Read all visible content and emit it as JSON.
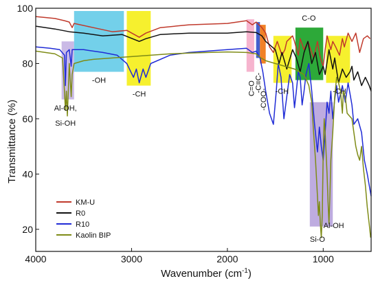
{
  "chart_data": {
    "type": "line",
    "title": "",
    "xlabel": "Wavenumber (cm",
    "xlabel_sup": "-1",
    "xlabel_end": ")",
    "ylabel": "Transmittance (%)",
    "xlim": [
      4000,
      500
    ],
    "x_reversed": true,
    "ylim": [
      12,
      100
    ],
    "grid": false,
    "legend_position": "bottom-left",
    "x_ticks": [
      {
        "value": 4000,
        "label": "4000"
      },
      {
        "value": 3000,
        "label": "3000"
      },
      {
        "value": 2000,
        "label": "2000"
      },
      {
        "value": 1000,
        "label": "1000"
      }
    ],
    "y_ticks": [
      {
        "value": 20,
        "label": "20"
      },
      {
        "value": 40,
        "label": "40"
      },
      {
        "value": 60,
        "label": "60"
      },
      {
        "value": 80,
        "label": "80"
      },
      {
        "value": 100,
        "label": "100"
      }
    ],
    "regions": [
      {
        "name": "region-al-oh",
        "x1": 3730,
        "x2": 3600,
        "y1": 67,
        "y2": 88,
        "color": "#b39ddb",
        "opacity": 0.7
      },
      {
        "name": "region-oh",
        "x1": 3600,
        "x2": 3080,
        "y1": 77,
        "y2": 99,
        "color": "#5bc8e6",
        "opacity": 0.85
      },
      {
        "name": "region-ch-1",
        "x1": 3050,
        "x2": 2800,
        "y1": 72,
        "y2": 99,
        "color": "#f5ee17",
        "opacity": 0.9
      },
      {
        "name": "region-c-o-double",
        "x1": 1800,
        "x2": 1720,
        "y1": 77,
        "y2": 96,
        "color": "#f4a7c6",
        "opacity": 0.85
      },
      {
        "name": "region-c-triple",
        "x1": 1700,
        "x2": 1660,
        "y1": 82,
        "y2": 95,
        "color": "#2f4fc8",
        "opacity": 0.9
      },
      {
        "name": "region-coo",
        "x1": 1660,
        "x2": 1600,
        "y1": 80,
        "y2": 94,
        "color": "#f07a1a",
        "opacity": 0.95
      },
      {
        "name": "region-ch-2",
        "x1": 1520,
        "x2": 1330,
        "y1": 73,
        "y2": 90,
        "color": "#f5ee17",
        "opacity": 0.9
      },
      {
        "name": "region-c-o",
        "x1": 1290,
        "x2": 1000,
        "y1": 74,
        "y2": 93,
        "color": "#22a42e",
        "opacity": 0.95
      },
      {
        "name": "region-ch-3",
        "x1": 970,
        "x2": 720,
        "y1": 73,
        "y2": 90,
        "color": "#f5ee17",
        "opacity": 0.9
      },
      {
        "name": "region-si-o",
        "x1": 1140,
        "x2": 900,
        "y1": 21,
        "y2": 66,
        "color": "#b39ddb",
        "opacity": 0.85
      }
    ],
    "annotations": [
      {
        "name": "label-al-oh-si-oh-1",
        "text": "Al-OH,",
        "x": 3690,
        "y": 63
      },
      {
        "name": "label-al-oh-si-oh-2",
        "text": "Si-OH",
        "x": 3690,
        "y": 57.5
      },
      {
        "name": "label-oh",
        "text": "-OH",
        "x": 3340,
        "y": 73
      },
      {
        "name": "label-ch-1",
        "text": "-CH",
        "x": 2920,
        "y": 68
      },
      {
        "name": "label-c-o-double",
        "text": "C=O",
        "x": 1750,
        "y": 71,
        "rotate": -90
      },
      {
        "name": "label-c-triple",
        "text": "-C≡C-",
        "x": 1680,
        "y": 73,
        "rotate": -90
      },
      {
        "name": "label-coo",
        "text": "-COO-",
        "x": 1625,
        "y": 67,
        "rotate": -90
      },
      {
        "name": "label-ch-2",
        "text": "-CH",
        "x": 1430,
        "y": 69
      },
      {
        "name": "label-c-o",
        "text": "C-O",
        "x": 1150,
        "y": 95.5
      },
      {
        "name": "label-ch-3",
        "text": "-CH",
        "x": 830,
        "y": 69
      },
      {
        "name": "label-si-o",
        "text": "Si-O",
        "x": 1060,
        "y": 15.5
      },
      {
        "name": "label-al-oh",
        "text": "Al-OH",
        "x": 890,
        "y": 20.5
      }
    ],
    "series": [
      {
        "name": "KM-U",
        "color": "#c0392b",
        "points": [
          [
            4000,
            97
          ],
          [
            3800,
            96.3
          ],
          [
            3700,
            95.5
          ],
          [
            3650,
            95
          ],
          [
            3620,
            93
          ],
          [
            3600,
            94.5
          ],
          [
            3400,
            93
          ],
          [
            3200,
            91.5
          ],
          [
            3050,
            92
          ],
          [
            2920,
            89.5
          ],
          [
            2850,
            91
          ],
          [
            2700,
            93
          ],
          [
            2400,
            94
          ],
          [
            2000,
            94.5
          ],
          [
            1800,
            95.5
          ],
          [
            1740,
            94
          ],
          [
            1700,
            95
          ],
          [
            1640,
            93
          ],
          [
            1600,
            91
          ],
          [
            1560,
            86
          ],
          [
            1520,
            84
          ],
          [
            1480,
            88
          ],
          [
            1430,
            83
          ],
          [
            1400,
            85
          ],
          [
            1380,
            88
          ],
          [
            1320,
            90
          ],
          [
            1300,
            88
          ],
          [
            1260,
            83
          ],
          [
            1240,
            89
          ],
          [
            1200,
            85
          ],
          [
            1160,
            88
          ],
          [
            1100,
            82
          ],
          [
            1060,
            88
          ],
          [
            1030,
            82
          ],
          [
            1000,
            79
          ],
          [
            980,
            85
          ],
          [
            960,
            90
          ],
          [
            920,
            85
          ],
          [
            900,
            88
          ],
          [
            870,
            86
          ],
          [
            830,
            83
          ],
          [
            800,
            89
          ],
          [
            780,
            86
          ],
          [
            740,
            91
          ],
          [
            700,
            88
          ],
          [
            660,
            91
          ],
          [
            620,
            84
          ],
          [
            580,
            89
          ],
          [
            540,
            90
          ],
          [
            510,
            89
          ]
        ]
      },
      {
        "name": "R0",
        "color": "#111111",
        "points": [
          [
            4000,
            93.5
          ],
          [
            3800,
            92.5
          ],
          [
            3650,
            91.5
          ],
          [
            3500,
            91
          ],
          [
            3300,
            90
          ],
          [
            3100,
            90.5
          ],
          [
            2920,
            88
          ],
          [
            2850,
            89
          ],
          [
            2700,
            90.5
          ],
          [
            2400,
            91
          ],
          [
            2000,
            91
          ],
          [
            1800,
            91.5
          ],
          [
            1700,
            91.2
          ],
          [
            1640,
            90
          ],
          [
            1600,
            88
          ],
          [
            1500,
            85
          ],
          [
            1460,
            80
          ],
          [
            1430,
            84
          ],
          [
            1380,
            78
          ],
          [
            1320,
            85
          ],
          [
            1280,
            82
          ],
          [
            1240,
            77
          ],
          [
            1200,
            84
          ],
          [
            1160,
            88
          ],
          [
            1120,
            80
          ],
          [
            1080,
            84
          ],
          [
            1040,
            76
          ],
          [
            1000,
            79
          ],
          [
            980,
            76
          ],
          [
            940,
            85
          ],
          [
            900,
            78
          ],
          [
            880,
            82
          ],
          [
            840,
            73
          ],
          [
            800,
            78
          ],
          [
            760,
            75
          ],
          [
            720,
            77
          ],
          [
            700,
            79
          ],
          [
            680,
            74
          ],
          [
            640,
            77
          ],
          [
            600,
            72
          ],
          [
            560,
            75
          ],
          [
            520,
            72
          ],
          [
            500,
            70
          ]
        ]
      },
      {
        "name": "R10",
        "color": "#1f2bd6",
        "points": [
          [
            4000,
            86
          ],
          [
            3850,
            85.5
          ],
          [
            3750,
            85
          ],
          [
            3700,
            83
          ],
          [
            3690,
            72
          ],
          [
            3680,
            84
          ],
          [
            3650,
            85
          ],
          [
            3630,
            79
          ],
          [
            3620,
            85
          ],
          [
            3500,
            85
          ],
          [
            3300,
            84
          ],
          [
            3150,
            83
          ],
          [
            3050,
            80
          ],
          [
            2980,
            75
          ],
          [
            2950,
            78
          ],
          [
            2920,
            73
          ],
          [
            2880,
            78
          ],
          [
            2850,
            75
          ],
          [
            2800,
            80
          ],
          [
            2600,
            83
          ],
          [
            2400,
            84
          ],
          [
            2000,
            85
          ],
          [
            1800,
            85.5
          ],
          [
            1740,
            84
          ],
          [
            1700,
            84.5
          ],
          [
            1660,
            82
          ],
          [
            1630,
            77
          ],
          [
            1600,
            70
          ],
          [
            1560,
            62
          ],
          [
            1520,
            58
          ],
          [
            1490,
            70
          ],
          [
            1470,
            80
          ],
          [
            1440,
            75
          ],
          [
            1410,
            60
          ],
          [
            1380,
            68
          ],
          [
            1350,
            76
          ],
          [
            1320,
            73
          ],
          [
            1300,
            64
          ],
          [
            1280,
            70
          ],
          [
            1260,
            77
          ],
          [
            1240,
            75
          ],
          [
            1220,
            65
          ],
          [
            1200,
            70
          ],
          [
            1180,
            76
          ],
          [
            1150,
            80
          ],
          [
            1120,
            70
          ],
          [
            1090,
            58
          ],
          [
            1060,
            48
          ],
          [
            1040,
            57
          ],
          [
            1020,
            50
          ],
          [
            1000,
            45
          ],
          [
            980,
            55
          ],
          [
            960,
            66
          ],
          [
            940,
            62
          ],
          [
            920,
            70
          ],
          [
            900,
            60
          ],
          [
            880,
            67
          ],
          [
            860,
            72
          ],
          [
            840,
            66
          ],
          [
            800,
            72
          ],
          [
            770,
            66
          ],
          [
            740,
            73
          ],
          [
            700,
            65
          ],
          [
            680,
            58
          ],
          [
            640,
            60
          ],
          [
            600,
            55
          ],
          [
            570,
            45
          ],
          [
            540,
            40
          ],
          [
            520,
            36
          ],
          [
            500,
            32
          ]
        ]
      },
      {
        "name": "Kaolin BIP",
        "color": "#7e8b16",
        "points": [
          [
            4000,
            84.5
          ],
          [
            3900,
            84
          ],
          [
            3800,
            83.5
          ],
          [
            3720,
            82
          ],
          [
            3700,
            70
          ],
          [
            3690,
            63
          ],
          [
            3680,
            70
          ],
          [
            3670,
            61
          ],
          [
            3660,
            70
          ],
          [
            3650,
            80
          ],
          [
            3630,
            68
          ],
          [
            3620,
            76
          ],
          [
            3600,
            80
          ],
          [
            3500,
            81
          ],
          [
            3400,
            81.5
          ],
          [
            3200,
            82
          ],
          [
            3000,
            82.5
          ],
          [
            2800,
            83
          ],
          [
            2600,
            83.5
          ],
          [
            2400,
            83.8
          ],
          [
            2200,
            84
          ],
          [
            2000,
            84.2
          ],
          [
            1800,
            84
          ],
          [
            1700,
            83.5
          ],
          [
            1650,
            82
          ],
          [
            1600,
            81
          ],
          [
            1500,
            80
          ],
          [
            1400,
            79
          ],
          [
            1300,
            78
          ],
          [
            1200,
            76
          ],
          [
            1150,
            72
          ],
          [
            1120,
            66
          ],
          [
            1100,
            55
          ],
          [
            1080,
            45
          ],
          [
            1060,
            32
          ],
          [
            1050,
            25
          ],
          [
            1040,
            30
          ],
          [
            1030,
            22
          ],
          [
            1020,
            17
          ],
          [
            1010,
            25
          ],
          [
            1000,
            48
          ],
          [
            990,
            60
          ],
          [
            980,
            55
          ],
          [
            960,
            40
          ],
          [
            950,
            30
          ],
          [
            940,
            22
          ],
          [
            930,
            32
          ],
          [
            920,
            45
          ],
          [
            900,
            55
          ],
          [
            880,
            68
          ],
          [
            860,
            75
          ],
          [
            840,
            73
          ],
          [
            820,
            70
          ],
          [
            800,
            62
          ],
          [
            790,
            70
          ],
          [
            770,
            68
          ],
          [
            750,
            62
          ],
          [
            700,
            60
          ],
          [
            680,
            55
          ],
          [
            660,
            50
          ],
          [
            640,
            47
          ],
          [
            620,
            45
          ],
          [
            600,
            50
          ],
          [
            580,
            42
          ],
          [
            560,
            36
          ],
          [
            540,
            28
          ],
          [
            520,
            22
          ],
          [
            505,
            17
          ]
        ]
      }
    ]
  }
}
